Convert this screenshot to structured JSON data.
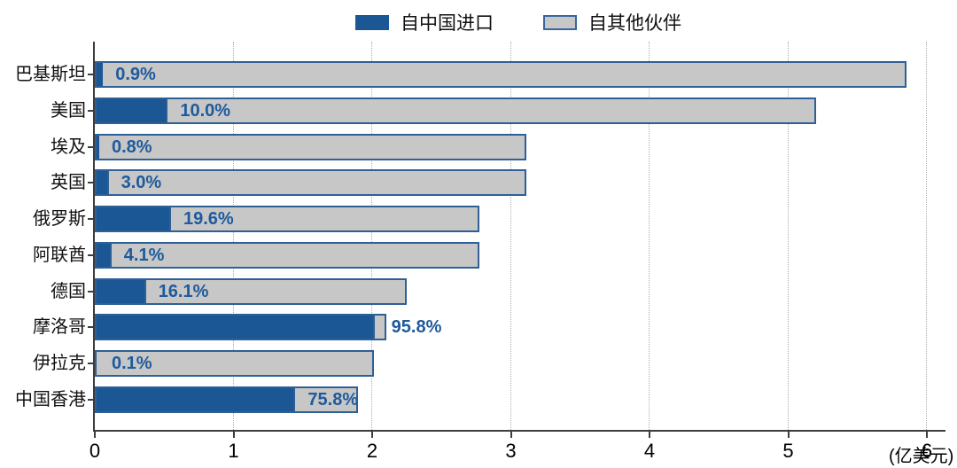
{
  "legend": {
    "items": [
      {
        "label": "自中国进口",
        "swatch": "china"
      },
      {
        "label": "自其他伙伴",
        "swatch": "others"
      }
    ]
  },
  "axis": {
    "unit_label": "(亿美元)"
  },
  "colors": {
    "china_fill": "#1A5794",
    "others_fill": "#C7C7C7",
    "bar_border": "#2E6096",
    "pct_text": "#1E5A9C",
    "axis_line": "#3D3D3D",
    "gridline": "#ADADAD"
  },
  "chart_data": {
    "type": "bar",
    "orientation": "horizontal",
    "stacked": true,
    "title": "",
    "xlabel": "(亿美元)",
    "ylabel": "",
    "xlim": [
      0,
      6.13
    ],
    "x_ticks": [
      "0",
      "1",
      "2",
      "3",
      "4",
      "5",
      "6"
    ],
    "grid": "vertical-dotted",
    "legend_position": "top-center",
    "series_names": [
      "自中国进口",
      "自其他伙伴"
    ],
    "categories": [
      "巴基斯坦",
      "美国",
      "埃及",
      "英国",
      "俄罗斯",
      "阿联酋",
      "德国",
      "摩洛哥",
      "伊拉克",
      "中国香港"
    ],
    "rows": [
      {
        "category": "巴基斯坦",
        "total_value": 5.85,
        "china_pct": 0.9,
        "pct_label": "0.9%"
      },
      {
        "category": "美国",
        "total_value": 5.2,
        "china_pct": 10.0,
        "pct_label": "10.0%"
      },
      {
        "category": "埃及",
        "total_value": 3.11,
        "china_pct": 0.8,
        "pct_label": "0.8%"
      },
      {
        "category": "英国",
        "total_value": 3.11,
        "china_pct": 3.0,
        "pct_label": "3.0%"
      },
      {
        "category": "俄罗斯",
        "total_value": 2.77,
        "china_pct": 19.6,
        "pct_label": "19.6%"
      },
      {
        "category": "阿联酋",
        "total_value": 2.77,
        "china_pct": 4.1,
        "pct_label": "4.1%"
      },
      {
        "category": "德国",
        "total_value": 2.25,
        "china_pct": 16.1,
        "pct_label": "16.1%"
      },
      {
        "category": "摩洛哥",
        "total_value": 2.1,
        "china_pct": 95.8,
        "pct_label": "95.8%"
      },
      {
        "category": "伊拉克",
        "total_value": 2.01,
        "china_pct": 0.1,
        "pct_label": "0.1%"
      },
      {
        "category": "中国香港",
        "total_value": 1.9,
        "china_pct": 75.8,
        "pct_label": "75.8%"
      }
    ]
  }
}
